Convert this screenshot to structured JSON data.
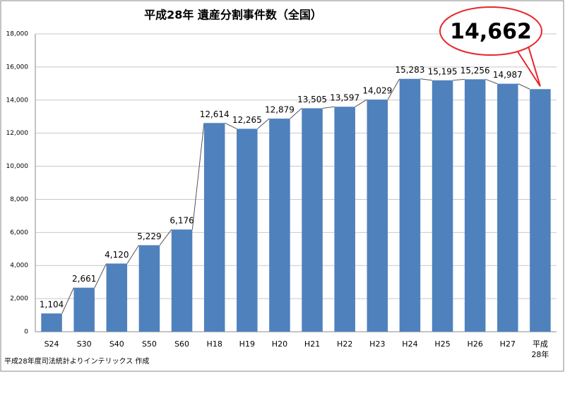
{
  "chart_data": {
    "type": "bar",
    "title": "平成28年 遺産分割事件数（全国）",
    "note": "平成28年度司法統計よりインテリックス 作成",
    "categories": [
      "S24",
      "S30",
      "S40",
      "S50",
      "S60",
      "H18",
      "H19",
      "H20",
      "H21",
      "H22",
      "H23",
      "H24",
      "H25",
      "H26",
      "H27",
      "平成28年"
    ],
    "values": [
      1104,
      2661,
      4120,
      5229,
      6176,
      12614,
      12265,
      12879,
      13505,
      13597,
      14029,
      15283,
      15195,
      15256,
      14987,
      14662
    ],
    "value_labels": [
      "1,104",
      "2,661",
      "4,120",
      "5,229",
      "6,176",
      "12,614",
      "12,265",
      "12,879",
      "13,505",
      "13,597",
      "14,029",
      "15,283",
      "15,195",
      "15,256",
      "14,987",
      "14,662"
    ],
    "color": "#4f81bd",
    "callout_color": "#e8262a",
    "ylim": [
      0,
      18000
    ],
    "yticks": [
      0,
      {
        "value": 2000,
        "label": "2,000"
      },
      {
        "value": 4000,
        "label": "4,000"
      },
      {
        "value": 6000,
        "label": "6,000"
      },
      {
        "value": 8000,
        "label": "8,000"
      },
      {
        "value": 10000,
        "label": "10,000"
      },
      {
        "value": 12000,
        "label": "12,000"
      },
      {
        "value": 14000,
        "label": "14,000"
      },
      {
        "value": 16000,
        "label": "16,000"
      },
      {
        "value": 18000,
        "label": "18,000"
      }
    ],
    "grid": true
  }
}
